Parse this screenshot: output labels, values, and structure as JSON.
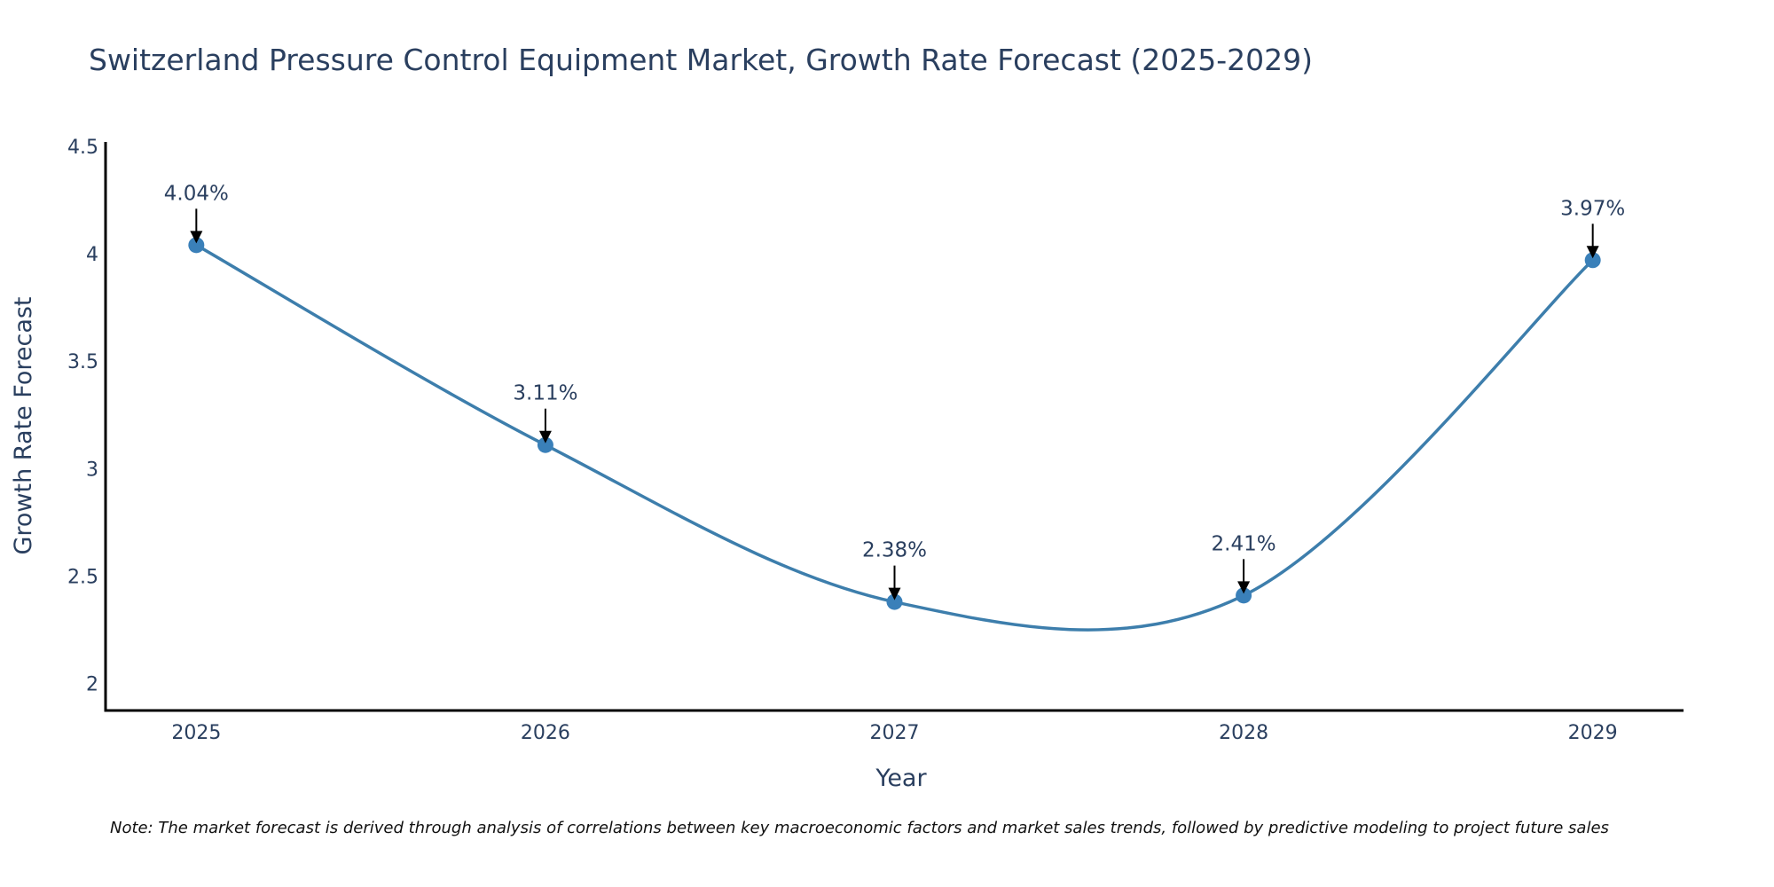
{
  "chart_data": {
    "type": "line",
    "title": "Switzerland Pressure Control Equipment Market, Growth Rate Forecast (2025-2029)",
    "xlabel": "Year",
    "ylabel": "Growth Rate Forecast",
    "categories": [
      "2025",
      "2026",
      "2027",
      "2028",
      "2029"
    ],
    "series": [
      {
        "name": "Growth Rate Forecast",
        "values": [
          4.04,
          3.11,
          2.38,
          2.41,
          3.97
        ],
        "line_shape": "spline",
        "markers": true
      }
    ],
    "annotations": [
      "4.04%",
      "3.11%",
      "2.38%",
      "2.41%",
      "3.97%"
    ],
    "yticks": [
      "2",
      "2.5",
      "3",
      "3.5",
      "4",
      "4.5"
    ],
    "ytick_values": [
      2,
      2.5,
      3,
      3.5,
      4,
      4.5
    ],
    "ylim": [
      1.875,
      4.52
    ],
    "xlim": [
      -0.26,
      4.26
    ],
    "grid": false,
    "legend": "none",
    "note": "Note: The market forecast is derived through analysis of correlations between key macroeconomic factors and market sales trends, followed by predictive modeling to project future sales",
    "colors": {
      "line": "#3d7eac",
      "marker": "#3a80b9",
      "text": "#2a3f5f",
      "axis": "#000000",
      "arrow": "#000000"
    }
  }
}
